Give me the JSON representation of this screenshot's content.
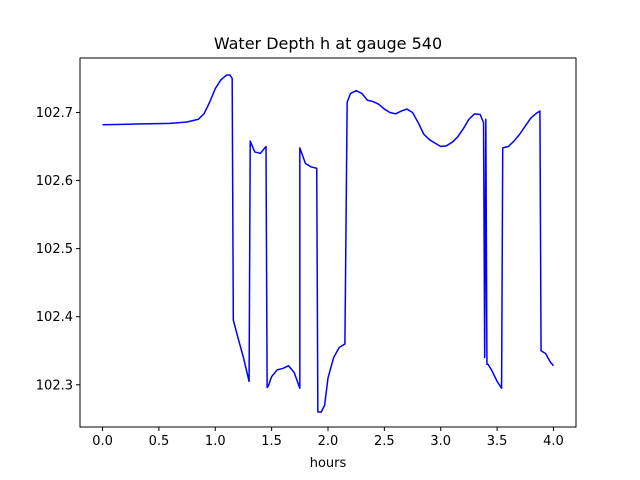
{
  "chart_data": {
    "type": "line",
    "title": "Water Depth h at gauge 540",
    "xlabel": "hours",
    "ylabel": "",
    "xlim": [
      -0.2,
      4.2
    ],
    "ylim": [
      102.238,
      102.78
    ],
    "grid": false,
    "xticks": [
      0.0,
      0.5,
      1.0,
      1.5,
      2.0,
      2.5,
      3.0,
      3.5,
      4.0
    ],
    "xtick_labels": [
      "0.0",
      "0.5",
      "1.0",
      "1.5",
      "2.0",
      "2.5",
      "3.0",
      "3.5",
      "4.0"
    ],
    "yticks": [
      102.3,
      102.4,
      102.5,
      102.6,
      102.7
    ],
    "ytick_labels": [
      "102.3",
      "102.4",
      "102.5",
      "102.6",
      "102.7"
    ],
    "series": [
      {
        "color": "#0000ff",
        "x": [
          0.0,
          0.3,
          0.6,
          0.75,
          0.85,
          0.9,
          0.95,
          1.0,
          1.05,
          1.1,
          1.13,
          1.15,
          1.16,
          1.2,
          1.25,
          1.3,
          1.31,
          1.35,
          1.4,
          1.45,
          1.46,
          1.47,
          1.5,
          1.55,
          1.6,
          1.65,
          1.7,
          1.75,
          1.75,
          1.8,
          1.85,
          1.9,
          1.91,
          1.94,
          1.97,
          2.0,
          2.05,
          2.1,
          2.15,
          2.17,
          2.2,
          2.25,
          2.3,
          2.35,
          2.4,
          2.45,
          2.5,
          2.55,
          2.6,
          2.65,
          2.7,
          2.75,
          2.8,
          2.85,
          2.9,
          2.95,
          3.0,
          3.05,
          3.1,
          3.15,
          3.2,
          3.25,
          3.3,
          3.35,
          3.38,
          3.39,
          3.4,
          3.41,
          3.42,
          3.45,
          3.5,
          3.54,
          3.55,
          3.6,
          3.65,
          3.7,
          3.75,
          3.8,
          3.85,
          3.88,
          3.89,
          3.93,
          3.97,
          4.0
        ],
        "y": [
          102.682,
          102.683,
          102.684,
          102.686,
          102.69,
          102.698,
          102.715,
          102.735,
          102.748,
          102.755,
          102.755,
          102.75,
          102.395,
          102.37,
          102.34,
          102.305,
          102.658,
          102.642,
          102.64,
          102.65,
          102.296,
          102.298,
          102.312,
          102.322,
          102.324,
          102.328,
          102.318,
          102.295,
          102.648,
          102.625,
          102.62,
          102.618,
          102.26,
          102.26,
          102.27,
          102.31,
          102.34,
          102.355,
          102.36,
          102.715,
          102.728,
          102.732,
          102.728,
          102.718,
          102.716,
          102.712,
          102.705,
          102.7,
          102.698,
          102.702,
          102.705,
          102.7,
          102.685,
          102.668,
          102.66,
          102.655,
          102.65,
          102.651,
          102.656,
          102.664,
          102.676,
          102.69,
          102.698,
          102.697,
          102.685,
          102.34,
          102.69,
          102.33,
          102.33,
          102.322,
          102.305,
          102.295,
          102.648,
          102.65,
          102.658,
          102.668,
          102.68,
          102.692,
          102.699,
          102.702,
          102.35,
          102.346,
          102.334,
          102.328
        ]
      }
    ]
  }
}
